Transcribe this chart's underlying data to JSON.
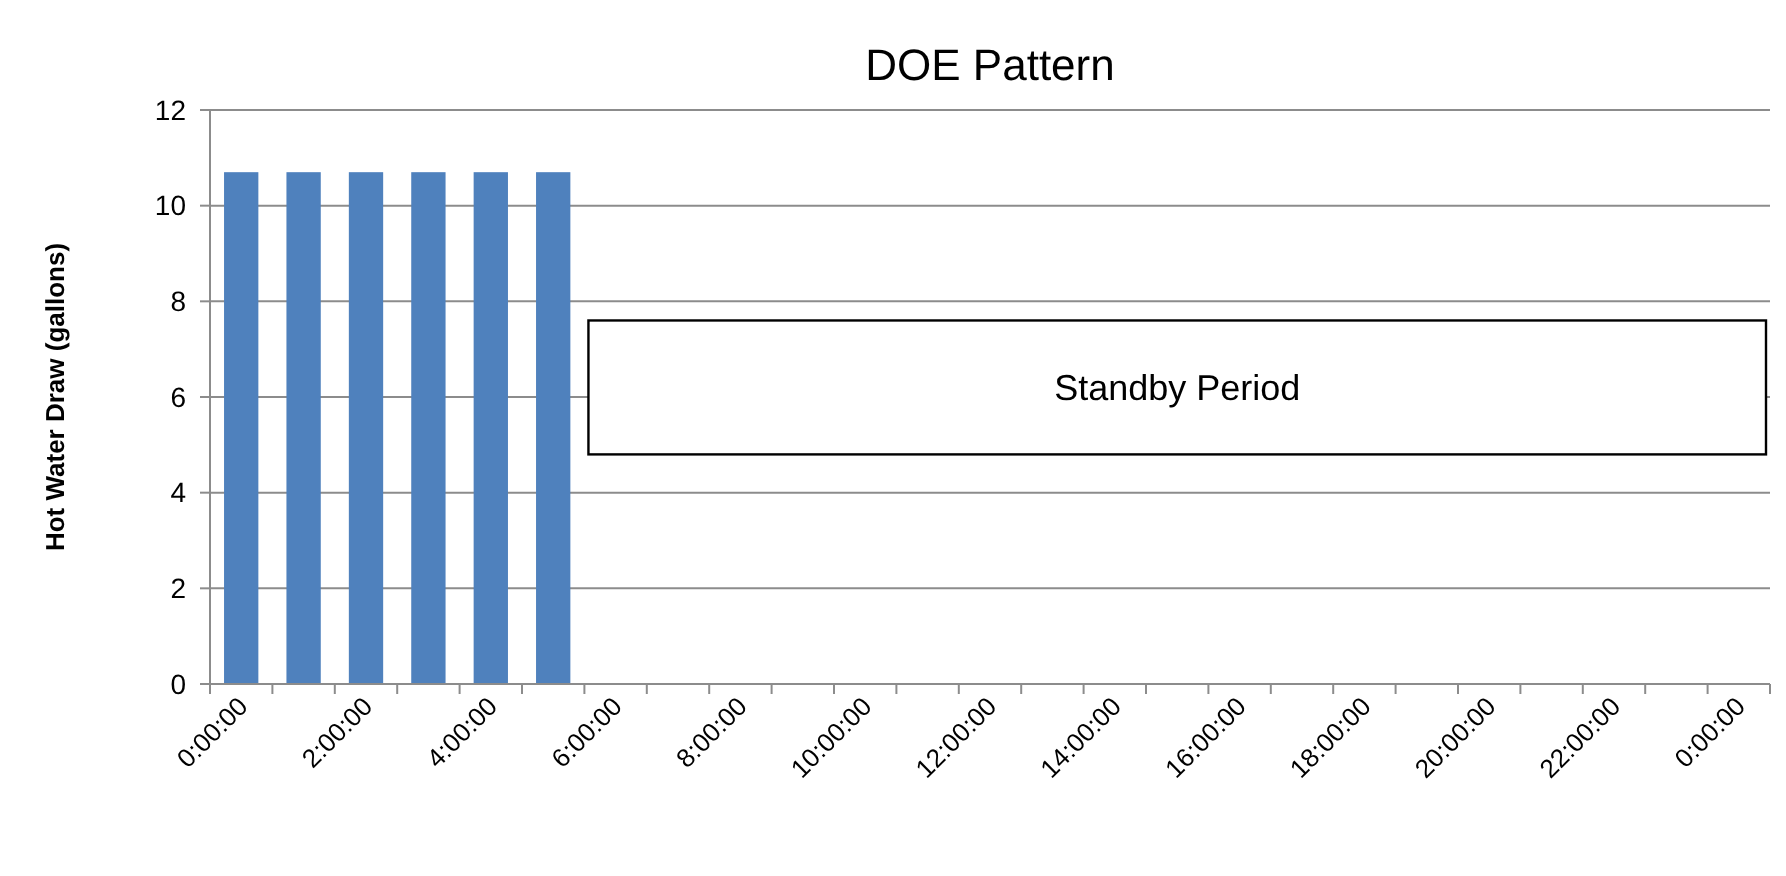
{
  "chart_data": {
    "type": "bar",
    "title": "DOE Pattern",
    "ylabel": "Hot Water Draw (gallons)",
    "categories": [
      "0:00:00",
      null,
      "2:00:00",
      null,
      "4:00:00",
      null,
      "6:00:00",
      null,
      "8:00:00",
      null,
      "10:00:00",
      null,
      "12:00:00",
      null,
      "14:00:00",
      null,
      "16:00:00",
      null,
      "18:00:00",
      null,
      "20:00:00",
      null,
      "22:00:00",
      null,
      "0:00:00"
    ],
    "values": [
      10.7,
      10.7,
      10.7,
      10.7,
      10.7,
      10.7,
      0,
      0,
      0,
      0,
      0,
      0,
      0,
      0,
      0,
      0,
      0,
      0,
      0,
      0,
      0,
      0,
      0,
      0,
      0
    ],
    "color": "#4f81bd",
    "ylim": [
      0,
      12
    ],
    "yticks": [
      0,
      2,
      4,
      6,
      8,
      10,
      12
    ],
    "grid": "y",
    "annotations": [
      "Standby Period"
    ]
  }
}
